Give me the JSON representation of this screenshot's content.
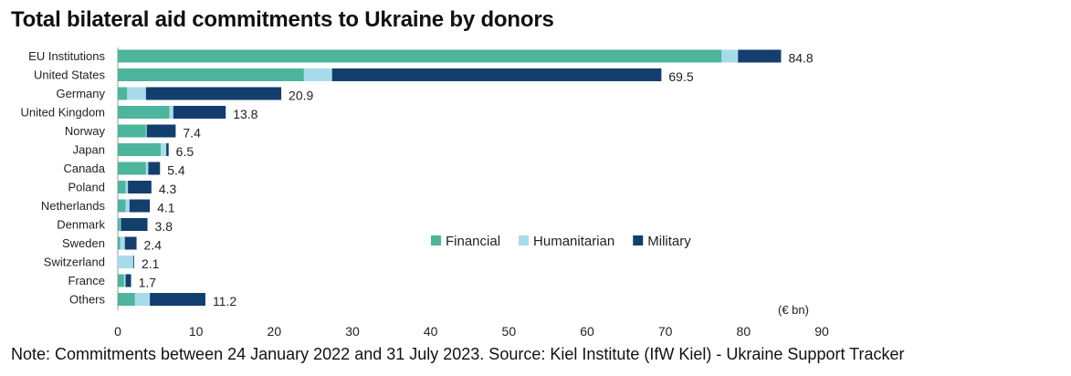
{
  "title": "Total bilateral aid commitments to Ukraine by donors",
  "note": "Note: Commitments between 24 January 2022 and 31 July 2023. Source: Kiel Institute (IfW Kiel) - Ukraine Support Tracker",
  "unit_label": "(€ bn)",
  "chart_data": {
    "type": "bar",
    "orientation": "horizontal",
    "stacked": true,
    "categories": [
      "EU Institutions",
      "United States",
      "Germany",
      "United Kingdom",
      "Norway",
      "Japan",
      "Canada",
      "Poland",
      "Netherlands",
      "Denmark",
      "Sweden",
      "Switzerland",
      "France",
      "Others"
    ],
    "series": [
      {
        "name": "Financial",
        "color": "#4cb59c",
        "values": [
          77.2,
          23.8,
          1.2,
          6.6,
          3.6,
          5.5,
          3.6,
          1.0,
          1.0,
          0.3,
          0.3,
          0.0,
          0.8,
          2.2
        ]
      },
      {
        "name": "Humanitarian",
        "color": "#a8dbe9",
        "values": [
          2.1,
          3.6,
          2.4,
          0.5,
          0.1,
          0.7,
          0.3,
          0.3,
          0.5,
          0.1,
          0.6,
          2.0,
          0.2,
          1.9
        ]
      },
      {
        "name": "Military",
        "color": "#123f6d",
        "values": [
          5.5,
          42.1,
          17.3,
          6.7,
          3.7,
          0.3,
          1.5,
          3.0,
          2.6,
          3.4,
          1.5,
          0.1,
          0.7,
          7.1
        ]
      }
    ],
    "totals": [
      "84.8",
      "69.5",
      "20.9",
      "13.8",
      "7.4",
      "6.5",
      "5.4",
      "4.3",
      "4.1",
      "3.8",
      "2.4",
      "2.1",
      "1.7",
      "11.2"
    ],
    "x_ticks": [
      "0",
      "10",
      "20",
      "30",
      "40",
      "50",
      "60",
      "70",
      "80",
      "90"
    ],
    "xlim": [
      0,
      90
    ],
    "legend_position": "right-middle",
    "grid": false
  }
}
